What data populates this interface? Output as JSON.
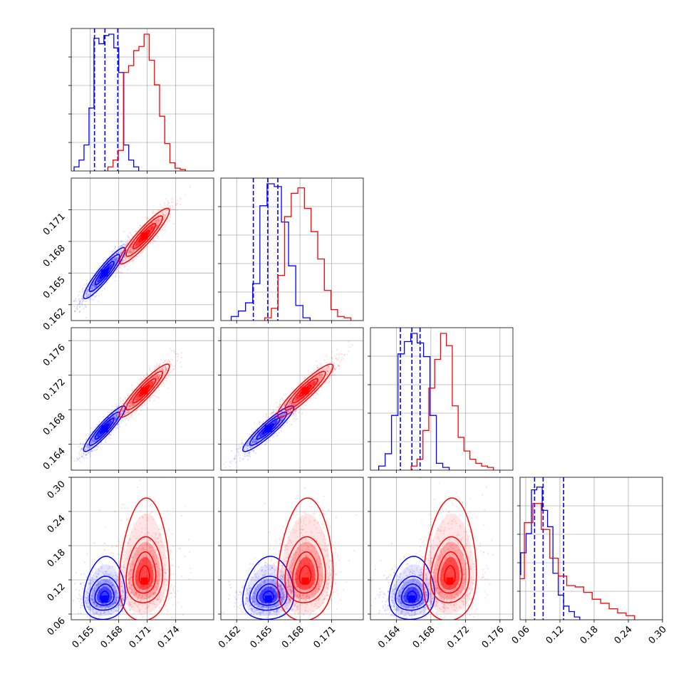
{
  "chart_data": {
    "type": "corner",
    "grid": true,
    "parameters": [
      {
        "range": [
          0.163,
          0.178
        ],
        "ticks": [
          0.165,
          0.168,
          0.171,
          0.174
        ],
        "ticklabels": [
          "0.165",
          "0.168",
          "0.171",
          "0.174"
        ]
      },
      {
        "range": [
          0.1605,
          0.174
        ],
        "ticks": [
          0.162,
          0.165,
          0.168,
          0.171
        ],
        "ticklabels": [
          "0.162",
          "0.165",
          "0.168",
          "0.171"
        ]
      },
      {
        "range": [
          0.161,
          0.1775
        ],
        "ticks": [
          0.164,
          0.168,
          0.172,
          0.176
        ],
        "ticklabels": [
          "0.164",
          "0.168",
          "0.172",
          "0.176"
        ]
      },
      {
        "range": [
          0.05,
          0.3
        ],
        "ticks": [
          0.06,
          0.12,
          0.18,
          0.24,
          0.3
        ],
        "ticklabels": [
          "0.06",
          "0.12",
          "0.18",
          "0.24",
          "0.30"
        ]
      }
    ],
    "series": [
      {
        "color": "#0000ff",
        "means": [
          0.1665,
          0.165,
          0.1658,
          0.09
        ],
        "sds": [
          0.001,
          0.0011,
          0.0012,
          0.018
        ],
        "quantiles": [
          [
            0.16545,
            0.16655,
            0.1679
          ],
          [
            0.16358,
            0.16495,
            0.1659
          ],
          [
            0.16447,
            0.1658,
            0.16675
          ],
          [
            0.0755,
            0.0905,
            0.1265
          ]
        ],
        "hist_counts": [
          [
            0.03,
            0.08,
            0.19,
            0.46,
            0.97,
            0.93,
            0.99,
            1.0,
            0.9,
            0.72,
            0.19,
            0.08,
            0.03
          ],
          [
            0.03,
            0.07,
            0.13,
            0.27,
            0.84,
            1.0,
            0.98,
            0.72,
            0.4,
            0.11,
            0.02
          ],
          [
            0.03,
            0.12,
            0.4,
            0.85,
            0.94,
            1.0,
            0.93,
            0.83,
            0.4,
            0.05,
            0.02
          ],
          [
            0.06,
            0.33,
            0.49,
            0.63,
            0.95,
            0.97,
            0.8,
            0.68,
            0.34,
            0.18,
            0.1,
            0.06,
            0.02
          ]
        ]
      },
      {
        "color": "#ff0000",
        "means": [
          0.1707,
          0.1685,
          0.1702,
          0.125
        ],
        "sds": [
          0.0012,
          0.0012,
          0.0014,
          0.035
        ],
        "quantiles": null,
        "hist_counts": [
          [
            0.03,
            0.08,
            0.15,
            0.72,
            0.77,
            0.88,
            0.91,
            1.0,
            0.81,
            0.63,
            0.4,
            0.2,
            0.06,
            0.02,
            0.01
          ],
          [
            0.02,
            0.09,
            0.33,
            0.76,
            0.93,
            0.97,
            0.82,
            0.65,
            0.45,
            0.22,
            0.08,
            0.03,
            0.02
          ],
          [
            0.03,
            0.08,
            0.29,
            0.6,
            0.81,
            1.0,
            0.91,
            0.47,
            0.24,
            0.14,
            0.08,
            0.05,
            0.03,
            0.02
          ],
          [
            0.02,
            0.1,
            0.3,
            0.71,
            0.85,
            0.66,
            0.45,
            0.32,
            0.25,
            0.24,
            0.2,
            0.15,
            0.12,
            0.08,
            0.05,
            0.03
          ]
        ]
      }
    ]
  }
}
